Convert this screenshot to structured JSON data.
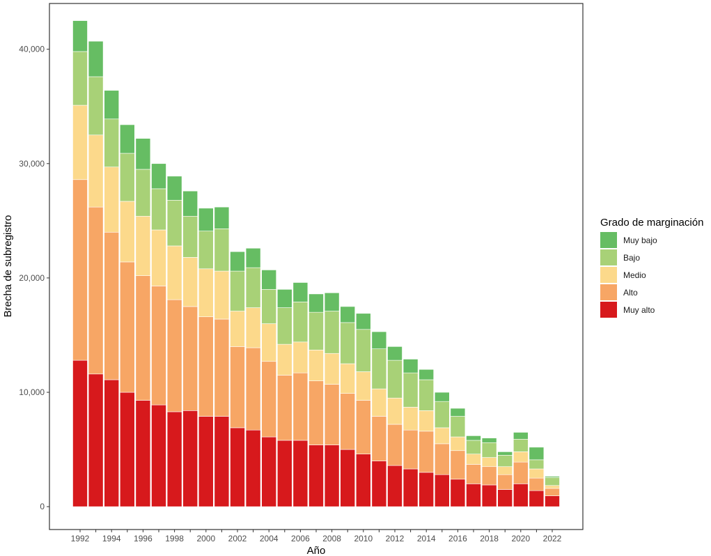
{
  "chart_data": {
    "type": "bar",
    "stacked": true,
    "title": "",
    "xlabel": "Año",
    "ylabel": "Brecha de subregistro",
    "ylim": [
      -2000,
      44000
    ],
    "y_ticks": [
      0,
      10000,
      20000,
      30000,
      40000
    ],
    "y_tick_labels": [
      "0",
      "10,000",
      "20,000",
      "30,000",
      "40,000"
    ],
    "x_tick_labels": [
      "1992",
      "1994",
      "1996",
      "1998",
      "2000",
      "2002",
      "2004",
      "2006",
      "2008",
      "2010",
      "2012",
      "2014",
      "2016",
      "2018",
      "2020",
      "2022"
    ],
    "grid": false,
    "categories": [
      "1992",
      "1993",
      "1994",
      "1995",
      "1996",
      "1997",
      "1998",
      "1999",
      "2000",
      "2001",
      "2002",
      "2003",
      "2004",
      "2005",
      "2006",
      "2007",
      "2008",
      "2009",
      "2010",
      "2011",
      "2012",
      "2013",
      "2014",
      "2015",
      "2016",
      "2017",
      "2018",
      "2019",
      "2020",
      "2021",
      "2022"
    ],
    "legend": {
      "title": "Grado de marginación",
      "position": "right",
      "order": [
        "Muy bajo",
        "Bajo",
        "Medio",
        "Alto",
        "Muy alto"
      ]
    },
    "series": [
      {
        "name": "Muy alto",
        "color": "#d7191c",
        "values": [
          12800,
          11600,
          11100,
          10000,
          9300,
          8900,
          8300,
          8400,
          7900,
          7900,
          6900,
          6700,
          6100,
          5800,
          5800,
          5400,
          5400,
          5000,
          4600,
          4000,
          3600,
          3300,
          3000,
          2800,
          2400,
          2000,
          1900,
          1500,
          2000,
          1400,
          950
        ]
      },
      {
        "name": "Alto",
        "color": "#f7a665",
        "values": [
          15800,
          14600,
          12900,
          11400,
          10900,
          10400,
          9800,
          9100,
          8700,
          8500,
          7100,
          7200,
          6600,
          5700,
          5900,
          5600,
          5300,
          4900,
          4700,
          3900,
          3600,
          3400,
          3600,
          2700,
          2500,
          1700,
          1600,
          1300,
          1900,
          1100,
          650
        ]
      },
      {
        "name": "Medio",
        "color": "#fcd98b",
        "values": [
          6500,
          6300,
          5700,
          5300,
          5200,
          4900,
          4700,
          4300,
          4200,
          4200,
          3100,
          3500,
          3300,
          2700,
          2700,
          2700,
          2700,
          2600,
          2500,
          2400,
          2300,
          2000,
          1800,
          1400,
          1200,
          900,
          800,
          700,
          900,
          800,
          250
        ]
      },
      {
        "name": "Bajo",
        "color": "#a8d177",
        "values": [
          4700,
          5100,
          4200,
          4200,
          4100,
          3600,
          4000,
          3600,
          3300,
          3700,
          3500,
          3500,
          3000,
          3200,
          3500,
          3300,
          3700,
          3600,
          3700,
          3500,
          3300,
          3000,
          2700,
          2300,
          1800,
          1200,
          1300,
          1000,
          1100,
          800,
          700
        ]
      },
      {
        "name": "Muy bajo",
        "color": "#66bd63",
        "values": [
          2700,
          3100,
          2500,
          2500,
          2700,
          2200,
          2100,
          2200,
          2000,
          1900,
          1700,
          1700,
          1700,
          1600,
          1700,
          1600,
          1600,
          1400,
          1400,
          1500,
          1200,
          1200,
          900,
          800,
          700,
          400,
          400,
          300,
          600,
          1100,
          100
        ]
      }
    ]
  }
}
